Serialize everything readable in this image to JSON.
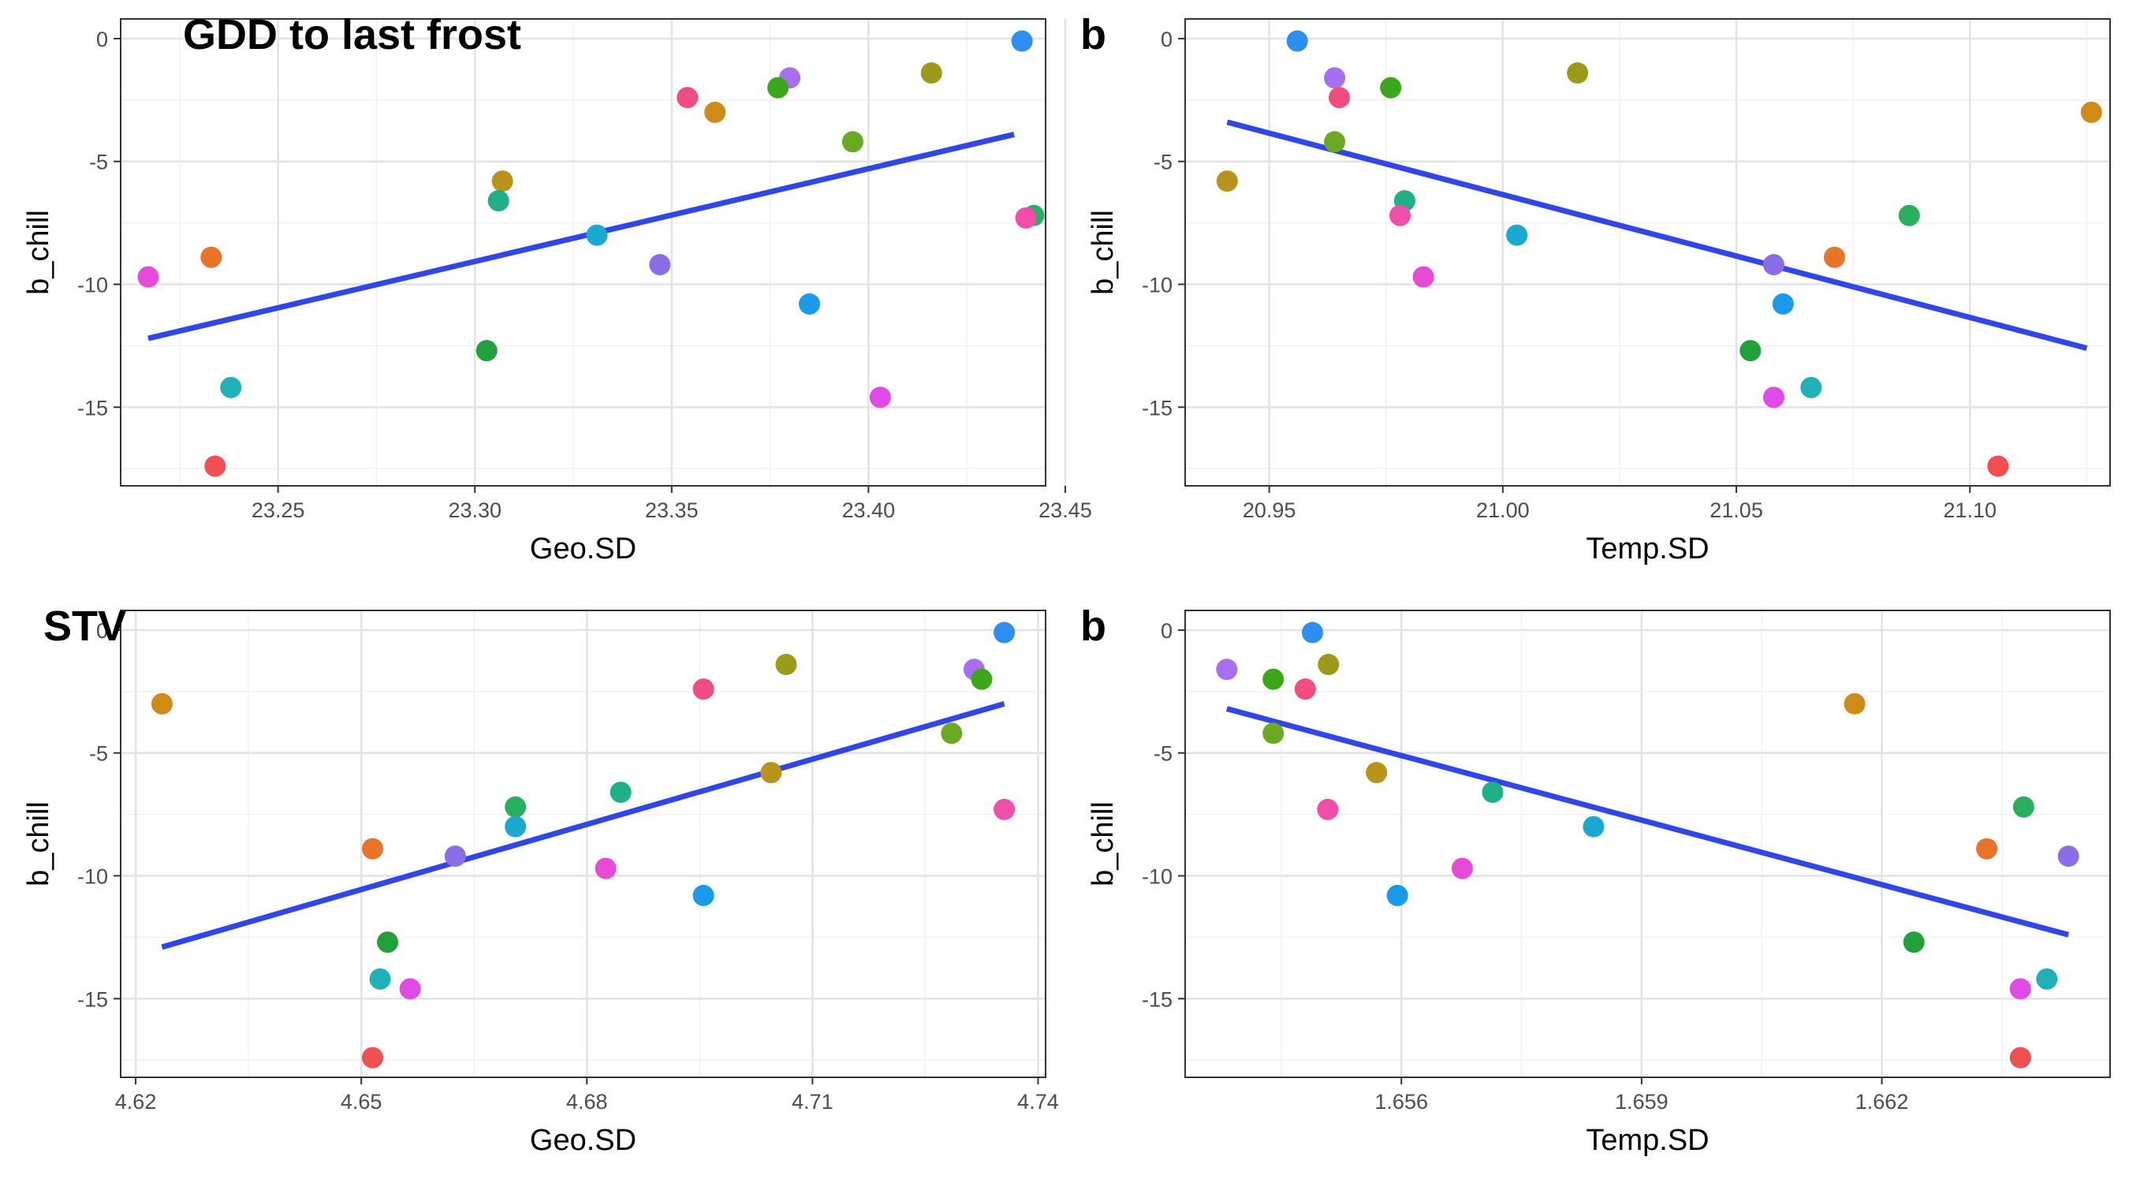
{
  "chart_data": [
    {
      "type": "scatter",
      "tag": "GDD to last frost",
      "xlabel": "Geo.SD",
      "ylabel": "b_chill",
      "xlim": [
        23.21,
        23.445
      ],
      "ylim": [
        -18.2,
        0.8
      ],
      "x_ticks": [
        23.25,
        23.3,
        23.35,
        23.4,
        23.45
      ],
      "x_tick_labels": [
        "23.25",
        "23.30",
        "23.35",
        "23.40",
        "23.45"
      ],
      "y_ticks": [
        0,
        -5,
        -10,
        -15
      ],
      "y_tick_labels": [
        "0",
        "-5",
        "-10",
        "-15"
      ],
      "grid": true,
      "legend": "none",
      "fit_line": [
        [
          23.217,
          -12.2
        ],
        [
          23.437,
          -3.9
        ]
      ],
      "points": [
        {
          "x": 23.439,
          "y": -0.1,
          "color": "#2f8ff0"
        },
        {
          "x": 23.38,
          "y": -1.6,
          "color": "#a86ef0"
        },
        {
          "x": 23.377,
          "y": -2.0,
          "color": "#3aa81a"
        },
        {
          "x": 23.416,
          "y": -1.4,
          "color": "#9c9a1a"
        },
        {
          "x": 23.354,
          "y": -2.4,
          "color": "#f04e80"
        },
        {
          "x": 23.361,
          "y": -3.0,
          "color": "#d08a18"
        },
        {
          "x": 23.396,
          "y": -4.2,
          "color": "#6aaa22"
        },
        {
          "x": 23.307,
          "y": -5.8,
          "color": "#b8941c"
        },
        {
          "x": 23.306,
          "y": -6.6,
          "color": "#20b088"
        },
        {
          "x": 23.331,
          "y": -8.0,
          "color": "#1aa8d0"
        },
        {
          "x": 23.442,
          "y": -7.2,
          "color": "#28b060"
        },
        {
          "x": 23.44,
          "y": -7.3,
          "color": "#f04ea8"
        },
        {
          "x": 23.233,
          "y": -8.9,
          "color": "#e8742a"
        },
        {
          "x": 23.217,
          "y": -9.7,
          "color": "#e84ad8"
        },
        {
          "x": 23.347,
          "y": -9.2,
          "color": "#8a6ee8"
        },
        {
          "x": 23.385,
          "y": -10.8,
          "color": "#1a9ae8"
        },
        {
          "x": 23.303,
          "y": -12.7,
          "color": "#22a03a"
        },
        {
          "x": 23.238,
          "y": -14.2,
          "color": "#20b0b8"
        },
        {
          "x": 23.403,
          "y": -14.6,
          "color": "#e04ae8"
        },
        {
          "x": 23.234,
          "y": -17.4,
          "color": "#f05050"
        }
      ]
    },
    {
      "type": "scatter",
      "tag": "b",
      "xlabel": "Temp.SD",
      "ylabel": "b_chill",
      "xlim": [
        20.932,
        21.13
      ],
      "ylim": [
        -18.2,
        0.8
      ],
      "x_ticks": [
        20.95,
        21.0,
        21.05,
        21.1
      ],
      "x_tick_labels": [
        "20.95",
        "21.00",
        "21.05",
        "21.10"
      ],
      "y_ticks": [
        0,
        -5,
        -10,
        -15
      ],
      "y_tick_labels": [
        "0",
        "-5",
        "-10",
        "-15"
      ],
      "grid": true,
      "legend": "none",
      "fit_line": [
        [
          20.941,
          -3.4
        ],
        [
          21.125,
          -12.6
        ]
      ],
      "points": [
        {
          "x": 20.956,
          "y": -0.1,
          "color": "#2f8ff0"
        },
        {
          "x": 20.964,
          "y": -1.6,
          "color": "#a86ef0"
        },
        {
          "x": 20.965,
          "y": -2.4,
          "color": "#f04e80"
        },
        {
          "x": 20.976,
          "y": -2.0,
          "color": "#3aa81a"
        },
        {
          "x": 21.016,
          "y": -1.4,
          "color": "#9c9a1a"
        },
        {
          "x": 21.126,
          "y": -3.0,
          "color": "#d08a18"
        },
        {
          "x": 20.964,
          "y": -4.2,
          "color": "#6aaa22"
        },
        {
          "x": 20.941,
          "y": -5.8,
          "color": "#b8941c"
        },
        {
          "x": 20.979,
          "y": -6.6,
          "color": "#20b088"
        },
        {
          "x": 20.978,
          "y": -7.2,
          "color": "#f04ea8"
        },
        {
          "x": 21.003,
          "y": -8.0,
          "color": "#1aa8d0"
        },
        {
          "x": 21.087,
          "y": -7.2,
          "color": "#28b060"
        },
        {
          "x": 21.071,
          "y": -8.9,
          "color": "#e8742a"
        },
        {
          "x": 20.983,
          "y": -9.7,
          "color": "#e84ad8"
        },
        {
          "x": 21.058,
          "y": -9.2,
          "color": "#8a6ee8"
        },
        {
          "x": 21.06,
          "y": -10.8,
          "color": "#1a9ae8"
        },
        {
          "x": 21.053,
          "y": -12.7,
          "color": "#22a03a"
        },
        {
          "x": 21.066,
          "y": -14.2,
          "color": "#20b0b8"
        },
        {
          "x": 21.058,
          "y": -14.6,
          "color": "#e04ae8"
        },
        {
          "x": 21.106,
          "y": -17.4,
          "color": "#f05050"
        }
      ]
    },
    {
      "type": "scatter",
      "tag": "STV",
      "xlabel": "Geo.SD",
      "ylabel": "b_chill",
      "xlim": [
        4.618,
        4.741
      ],
      "ylim": [
        -18.2,
        0.8
      ],
      "x_ticks": [
        4.62,
        4.65,
        4.68,
        4.71,
        4.74
      ],
      "x_tick_labels": [
        "4.62",
        "4.65",
        "4.68",
        "4.71",
        "4.74"
      ],
      "y_ticks": [
        0,
        -5,
        -10,
        -15
      ],
      "y_tick_labels": [
        "0",
        "-5",
        "-10",
        "-15"
      ],
      "grid": true,
      "legend": "none",
      "fit_line": [
        [
          4.6235,
          -12.9
        ],
        [
          4.7355,
          -3.0
        ]
      ],
      "points": [
        {
          "x": 4.7355,
          "y": -0.1,
          "color": "#2f8ff0"
        },
        {
          "x": 4.7315,
          "y": -1.6,
          "color": "#a86ef0"
        },
        {
          "x": 4.7325,
          "y": -2.0,
          "color": "#3aa81a"
        },
        {
          "x": 4.7065,
          "y": -1.4,
          "color": "#9c9a1a"
        },
        {
          "x": 4.6955,
          "y": -2.4,
          "color": "#f04e80"
        },
        {
          "x": 4.6235,
          "y": -3.0,
          "color": "#d08a18"
        },
        {
          "x": 4.7285,
          "y": -4.2,
          "color": "#6aaa22"
        },
        {
          "x": 4.7045,
          "y": -5.8,
          "color": "#b8941c"
        },
        {
          "x": 4.6845,
          "y": -6.6,
          "color": "#20b088"
        },
        {
          "x": 4.6705,
          "y": -7.2,
          "color": "#28b060"
        },
        {
          "x": 4.7355,
          "y": -7.3,
          "color": "#f04ea8"
        },
        {
          "x": 4.6705,
          "y": -8.0,
          "color": "#1aa8d0"
        },
        {
          "x": 4.6515,
          "y": -8.9,
          "color": "#e8742a"
        },
        {
          "x": 4.6625,
          "y": -9.2,
          "color": "#8a6ee8"
        },
        {
          "x": 4.6825,
          "y": -9.7,
          "color": "#e84ad8"
        },
        {
          "x": 4.6955,
          "y": -10.8,
          "color": "#1a9ae8"
        },
        {
          "x": 4.6535,
          "y": -12.7,
          "color": "#22a03a"
        },
        {
          "x": 4.6525,
          "y": -14.2,
          "color": "#20b0b8"
        },
        {
          "x": 4.6565,
          "y": -14.6,
          "color": "#e04ae8"
        },
        {
          "x": 4.6515,
          "y": -17.4,
          "color": "#f05050"
        }
      ]
    },
    {
      "type": "scatter",
      "tag": "b",
      "xlabel": "Temp.SD",
      "ylabel": "b_chill",
      "xlim": [
        1.6533,
        1.66485
      ],
      "ylim": [
        -18.2,
        0.8
      ],
      "x_ticks": [
        1.656,
        1.659,
        1.662
      ],
      "x_tick_labels": [
        "1.656",
        "1.659",
        "1.662"
      ],
      "y_ticks": [
        0,
        -5,
        -10,
        -15
      ],
      "y_tick_labels": [
        "0",
        "-5",
        "-10",
        "-15"
      ],
      "grid": true,
      "legend": "none",
      "fit_line": [
        [
          1.65382,
          -3.2
        ],
        [
          1.66433,
          -12.4
        ]
      ],
      "points": [
        {
          "x": 1.65489,
          "y": -0.1,
          "color": "#2f8ff0"
        },
        {
          "x": 1.65382,
          "y": -1.6,
          "color": "#a86ef0"
        },
        {
          "x": 1.6544,
          "y": -2.0,
          "color": "#3aa81a"
        },
        {
          "x": 1.65509,
          "y": -1.4,
          "color": "#9c9a1a"
        },
        {
          "x": 1.6548,
          "y": -2.4,
          "color": "#f04e80"
        },
        {
          "x": 1.66166,
          "y": -3.0,
          "color": "#d08a18"
        },
        {
          "x": 1.6544,
          "y": -4.2,
          "color": "#6aaa22"
        },
        {
          "x": 1.65569,
          "y": -5.8,
          "color": "#b8941c"
        },
        {
          "x": 1.65714,
          "y": -6.6,
          "color": "#20b088"
        },
        {
          "x": 1.66377,
          "y": -7.2,
          "color": "#28b060"
        },
        {
          "x": 1.65508,
          "y": -7.3,
          "color": "#f04ea8"
        },
        {
          "x": 1.6584,
          "y": -8.0,
          "color": "#1aa8d0"
        },
        {
          "x": 1.66331,
          "y": -8.9,
          "color": "#e8742a"
        },
        {
          "x": 1.66433,
          "y": -9.2,
          "color": "#8a6ee8"
        },
        {
          "x": 1.65676,
          "y": -9.7,
          "color": "#e84ad8"
        },
        {
          "x": 1.65595,
          "y": -10.8,
          "color": "#1a9ae8"
        },
        {
          "x": 1.6624,
          "y": -12.7,
          "color": "#22a03a"
        },
        {
          "x": 1.66406,
          "y": -14.2,
          "color": "#20b0b8"
        },
        {
          "x": 1.66373,
          "y": -14.6,
          "color": "#e04ae8"
        },
        {
          "x": 1.66373,
          "y": -17.4,
          "color": "#f05050"
        }
      ]
    }
  ]
}
